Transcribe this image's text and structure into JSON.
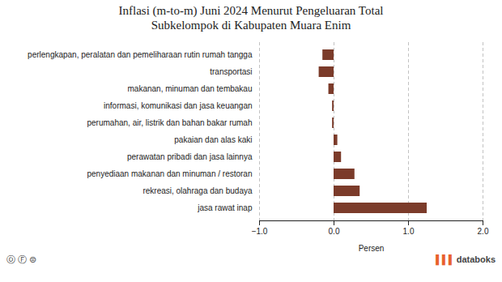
{
  "chart_data": {
    "type": "bar",
    "orientation": "horizontal",
    "title": "Inflasi (m-to-m) Juni 2024 Menurut Pengeluaran Total\nSubkelompok di Kabupaten Muara Enim",
    "categories": [
      "perlengkapan, peralatan dan pemeliharaan rutin rumah tangga",
      "transportasi",
      "makanan, minuman dan tembakau",
      "informasi, komunikasi dan jasa keuangan",
      "perumahan, air, listrik dan bahan bakar rumah",
      "pakaian dan alas kaki",
      "perawatan pribadi dan jasa lainnya",
      "penyediaan makanan dan minuman / restoran",
      "rekreasi, olahraga dan budaya",
      "jasa rawat inap"
    ],
    "values": [
      -0.15,
      -0.2,
      -0.07,
      -0.02,
      -0.02,
      0.05,
      0.1,
      0.28,
      0.35,
      1.25
    ],
    "color": "#7B3B2A",
    "xlabel": "Persen",
    "xlim": [
      -1,
      2
    ],
    "xticks": [
      -1,
      0,
      1,
      2
    ],
    "grid": true,
    "annotations": [
      "ⓞ Ⓕ ⊜",
      "▐▐▐",
      "databoks"
    ]
  }
}
